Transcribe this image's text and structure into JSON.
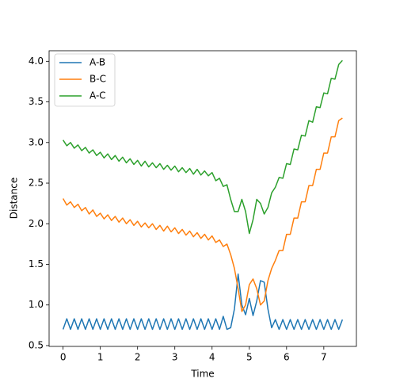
{
  "chart_data": {
    "type": "line",
    "x_label": "Time",
    "y_label": "Distance",
    "x": [
      0,
      0.1,
      0.2,
      0.3,
      0.4,
      0.5,
      0.6,
      0.7,
      0.8,
      0.9,
      1,
      1.1,
      1.2,
      1.3,
      1.4,
      1.5,
      1.6,
      1.7,
      1.8,
      1.9,
      2,
      2.1,
      2.2,
      2.3,
      2.4,
      2.5,
      2.6,
      2.7,
      2.8,
      2.9,
      3,
      3.1,
      3.2,
      3.3,
      3.4,
      3.5,
      3.6,
      3.7,
      3.8,
      3.9,
      4,
      4.1,
      4.2,
      4.3,
      4.4,
      4.5,
      4.6,
      4.7,
      4.8,
      4.9,
      5,
      5.1,
      5.2,
      5.3,
      5.4,
      5.5,
      5.6,
      5.7,
      5.8,
      5.9,
      6,
      6.1,
      6.2,
      6.3,
      6.4,
      6.5,
      6.6,
      6.7,
      6.8,
      6.9,
      7,
      7.1,
      7.2,
      7.3,
      7.4,
      7.5
    ],
    "series": [
      {
        "name": "A-B",
        "color": "#1f77b4",
        "values": [
          0.7,
          0.83,
          0.7,
          0.83,
          0.7,
          0.83,
          0.7,
          0.83,
          0.7,
          0.83,
          0.7,
          0.83,
          0.7,
          0.83,
          0.7,
          0.83,
          0.7,
          0.83,
          0.7,
          0.83,
          0.7,
          0.83,
          0.7,
          0.83,
          0.7,
          0.83,
          0.7,
          0.83,
          0.7,
          0.83,
          0.7,
          0.83,
          0.7,
          0.83,
          0.7,
          0.83,
          0.7,
          0.83,
          0.7,
          0.83,
          0.7,
          0.83,
          0.7,
          0.86,
          0.7,
          0.72,
          0.95,
          1.38,
          1.0,
          0.88,
          1.08,
          0.87,
          1.05,
          1.3,
          1.28,
          0.95,
          0.72,
          0.82,
          0.7,
          0.82,
          0.7,
          0.82,
          0.7,
          0.82,
          0.7,
          0.82,
          0.7,
          0.82,
          0.7,
          0.82,
          0.7,
          0.82,
          0.7,
          0.82,
          0.7,
          0.82
        ]
      },
      {
        "name": "B-C",
        "color": "#ff7f0e",
        "values": [
          2.31,
          2.23,
          2.27,
          2.2,
          2.24,
          2.16,
          2.2,
          2.12,
          2.17,
          2.09,
          2.13,
          2.06,
          2.11,
          2.04,
          2.09,
          2.02,
          2.07,
          2.0,
          2.05,
          1.98,
          2.03,
          1.96,
          2.01,
          1.95,
          2.0,
          1.93,
          1.98,
          1.91,
          1.97,
          1.9,
          1.95,
          1.88,
          1.93,
          1.86,
          1.91,
          1.84,
          1.89,
          1.82,
          1.87,
          1.8,
          1.85,
          1.77,
          1.8,
          1.72,
          1.75,
          1.62,
          1.45,
          1.2,
          0.92,
          1.0,
          1.25,
          1.32,
          1.2,
          1.0,
          1.05,
          1.3,
          1.45,
          1.55,
          1.67,
          1.67,
          1.87,
          1.87,
          2.07,
          2.07,
          2.27,
          2.27,
          2.47,
          2.47,
          2.67,
          2.67,
          2.87,
          2.87,
          3.07,
          3.07,
          3.27,
          3.3
        ]
      },
      {
        "name": "A-C",
        "color": "#2ca02c",
        "values": [
          3.03,
          2.96,
          3.0,
          2.93,
          2.97,
          2.9,
          2.94,
          2.87,
          2.91,
          2.84,
          2.88,
          2.81,
          2.86,
          2.79,
          2.84,
          2.77,
          2.82,
          2.75,
          2.8,
          2.73,
          2.78,
          2.71,
          2.77,
          2.7,
          2.75,
          2.69,
          2.74,
          2.67,
          2.72,
          2.66,
          2.71,
          2.64,
          2.69,
          2.63,
          2.68,
          2.61,
          2.67,
          2.6,
          2.65,
          2.59,
          2.63,
          2.53,
          2.56,
          2.46,
          2.48,
          2.3,
          2.15,
          2.15,
          2.3,
          2.15,
          1.88,
          2.05,
          2.3,
          2.25,
          2.12,
          2.2,
          2.38,
          2.45,
          2.57,
          2.56,
          2.74,
          2.73,
          2.92,
          2.91,
          3.09,
          3.08,
          3.27,
          3.25,
          3.44,
          3.43,
          3.61,
          3.6,
          3.79,
          3.78,
          3.96,
          4.01
        ]
      }
    ],
    "xlim": [
      -0.375,
      7.875
    ],
    "ylim": [
      0.49,
      4.13
    ],
    "xticks": [
      0,
      1,
      2,
      3,
      4,
      5,
      6,
      7
    ],
    "yticks": [
      0.5,
      {
        "value": 1,
        "label": "1.0"
      },
      1.5,
      {
        "value": 2,
        "label": "2.0"
      },
      2.5,
      {
        "value": 3,
        "label": "3.0"
      },
      3.5,
      {
        "value": 4,
        "label": "4.0"
      }
    ],
    "legend": "upper left"
  }
}
